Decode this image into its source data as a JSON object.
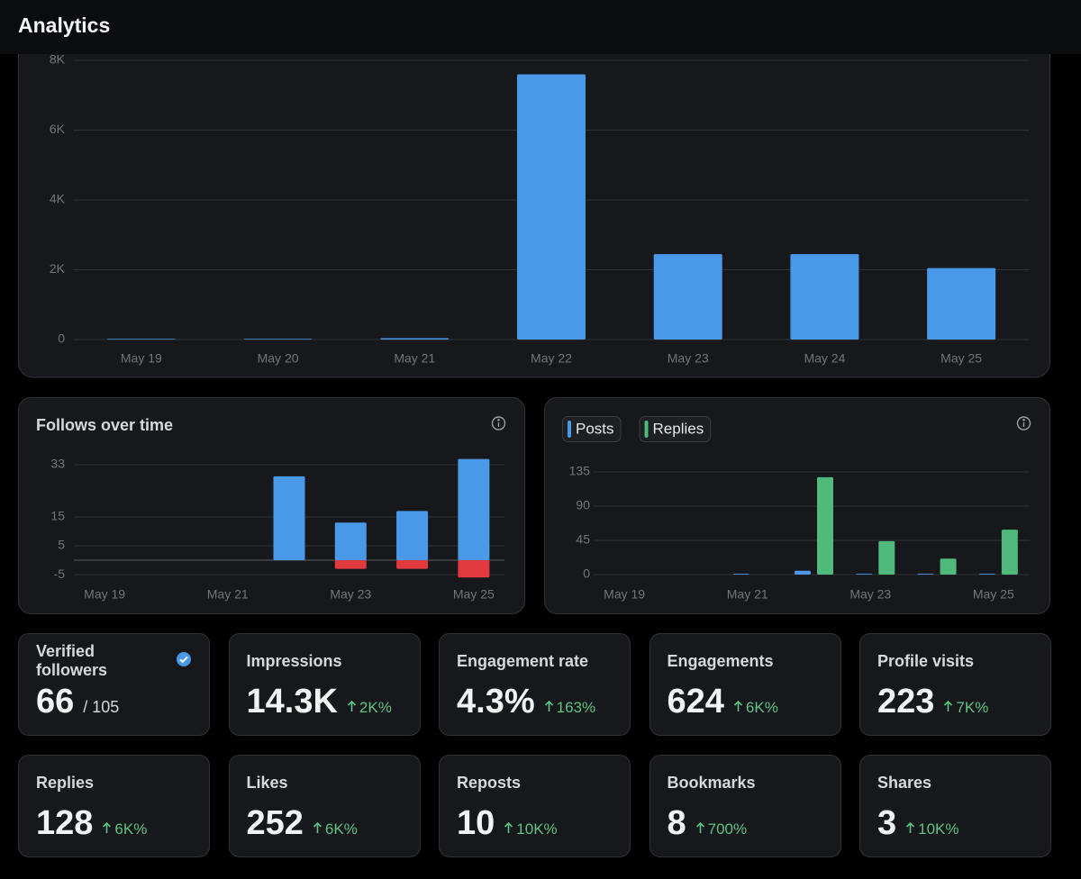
{
  "header": {
    "title": "Analytics"
  },
  "impressions_chart": {
    "type": "bar",
    "categories": [
      "May 19",
      "May 20",
      "May 21",
      "May 22",
      "May 23",
      "May 24",
      "May 25"
    ],
    "values": [
      20,
      20,
      40,
      7600,
      2450,
      2450,
      2050
    ],
    "color": "#4a99e9",
    "ylim": [
      0,
      8000
    ],
    "yticks": [
      0,
      {
        "value": 2000,
        "label": "2K"
      },
      {
        "value": 4000,
        "label": "4K"
      },
      {
        "value": 6000,
        "label": "6K"
      },
      {
        "value": 8000,
        "label": "8K"
      }
    ],
    "grid": true
  },
  "follows_chart": {
    "type": "bar",
    "title": "Follows over time",
    "categories": [
      "May 19",
      null,
      "May 21",
      null,
      "May 23",
      null,
      "May 25"
    ],
    "series": [
      {
        "color": "#4a99e9",
        "values": [
          0,
          0,
          0,
          29,
          13,
          17,
          35
        ]
      },
      {
        "color": "#e0393e",
        "values": [
          0,
          0,
          0,
          0,
          -3,
          -3,
          -6
        ]
      }
    ],
    "ylim": [
      -6,
      35
    ],
    "yticks": [
      -5,
      5,
      15,
      33
    ],
    "grid": true
  },
  "posts_chart": {
    "type": "grouped-bar",
    "categories": [
      "May 19",
      null,
      "May 21",
      null,
      "May 23",
      null,
      "May 25"
    ],
    "series": [
      {
        "name": "Posts",
        "color": "#4a99e9",
        "values": [
          0,
          0,
          1,
          5,
          1,
          1,
          1
        ]
      },
      {
        "name": "Replies",
        "color": "#4fba7c",
        "values": [
          0,
          0,
          0,
          128,
          44,
          21,
          59
        ]
      }
    ],
    "ylim": [
      0,
      135
    ],
    "yticks": [
      0,
      45,
      90,
      135
    ],
    "grid": true
  },
  "stats": [
    {
      "label": "Verified followers",
      "value": "66",
      "total": "/ 105"
    },
    {
      "label": "Impressions",
      "value": "14.3K",
      "change": "2K%"
    },
    {
      "label": "Engagement rate",
      "value": "4.3%",
      "change": "163%"
    },
    {
      "label": "Engagements",
      "value": "624",
      "change": "6K%"
    },
    {
      "label": "Profile visits",
      "value": "223",
      "change": "7K%"
    },
    {
      "label": "Replies",
      "value": "128",
      "change": "6K%"
    },
    {
      "label": "Likes",
      "value": "252",
      "change": "6K%"
    },
    {
      "label": "Reposts",
      "value": "10",
      "change": "10K%"
    },
    {
      "label": "Bookmarks",
      "value": "8",
      "change": "700%"
    },
    {
      "label": "Shares",
      "value": "3",
      "change": "10K%"
    }
  ]
}
